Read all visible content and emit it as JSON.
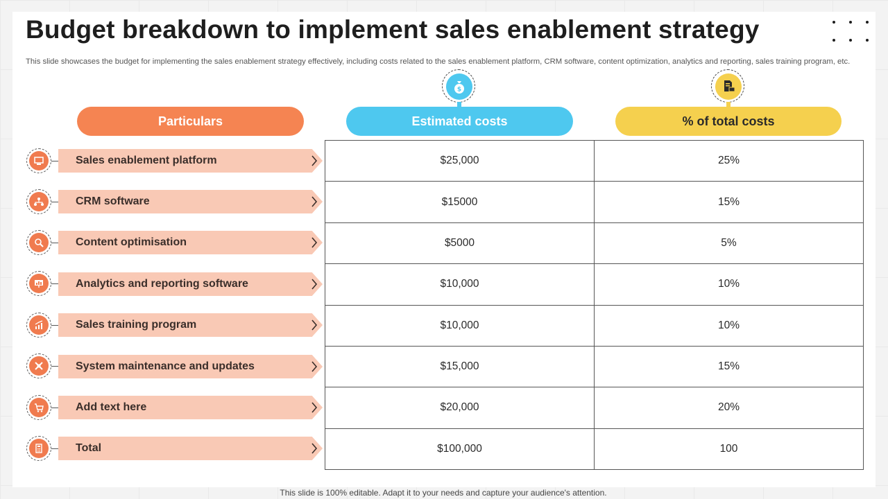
{
  "title": "Budget breakdown to implement sales enablement strategy",
  "subtitle": "This slide showcases the budget for implementing the sales enablement strategy effectively,  including costs related to the sales enablement platform, CRM software, content optimization, analytics and reporting, sales training program, etc.",
  "headers": {
    "particulars": "Particulars",
    "estimated": "Estimated costs",
    "percent": "% of total costs"
  },
  "rows": [
    {
      "label": "Sales enablement platform",
      "cost": "$25,000",
      "percent": "25%",
      "icon": "platform-icon"
    },
    {
      "label": "CRM software",
      "cost": "$15000",
      "percent": "15%",
      "icon": "network-icon"
    },
    {
      "label": "Content optimisation",
      "cost": "$5000",
      "percent": "5%",
      "icon": "magnifier-gear-icon"
    },
    {
      "label": "Analytics and reporting software",
      "cost": "$10,000",
      "percent": "10%",
      "icon": "presentation-chart-icon"
    },
    {
      "label": "Sales training program",
      "cost": "$10,000",
      "percent": "10%",
      "icon": "growth-chart-icon"
    },
    {
      "label": "System maintenance and updates",
      "cost": "$15,000",
      "percent": "15%",
      "icon": "tools-icon"
    },
    {
      "label": "Add text here",
      "cost": "$20,000",
      "percent": "20%",
      "icon": "cart-icon"
    },
    {
      "label": "Total",
      "cost": "$100,000",
      "percent": "100",
      "icon": "calculator-icon"
    }
  ],
  "footer": "This slide is 100% editable. Adapt it to your needs and capture your audience's attention.",
  "colors": {
    "orange": "#f58452",
    "blue": "#4ec8ef",
    "yellow": "#f5d04e",
    "label_bg": "#f9c9b5"
  }
}
